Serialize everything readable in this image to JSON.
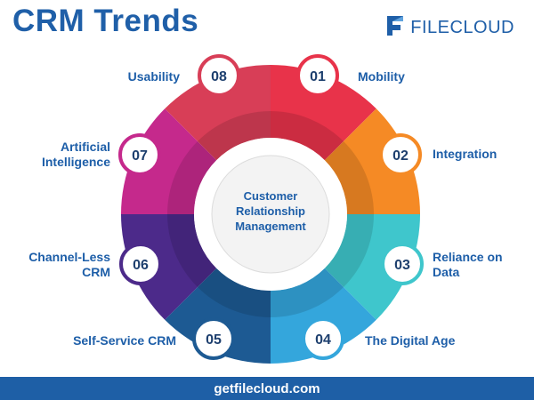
{
  "title": "CRM Trends",
  "logo": {
    "name": "FILECLOUD",
    "icon": "filecloud-logo-icon"
  },
  "center_label": "Customer Relationship Management",
  "trends": [
    {
      "number": "01",
      "label": "Mobility",
      "color": "#e8334a"
    },
    {
      "number": "02",
      "label": "Integration",
      "color": "#f58a25"
    },
    {
      "number": "03",
      "label": "Reliance on Data",
      "color": "#3fc6cc"
    },
    {
      "number": "04",
      "label": "The Digital Age",
      "color": "#34a6dc"
    },
    {
      "number": "05",
      "label": "Self-Service CRM",
      "color": "#1d5a93"
    },
    {
      "number": "06",
      "label": "Channel-Less CRM",
      "color": "#4c2a8a"
    },
    {
      "number": "07",
      "label": "Artificial Intelligence",
      "color": "#c5298c"
    },
    {
      "number": "08",
      "label": "Usability",
      "color": "#d83e57"
    }
  ],
  "footer": "getfilecloud.com"
}
